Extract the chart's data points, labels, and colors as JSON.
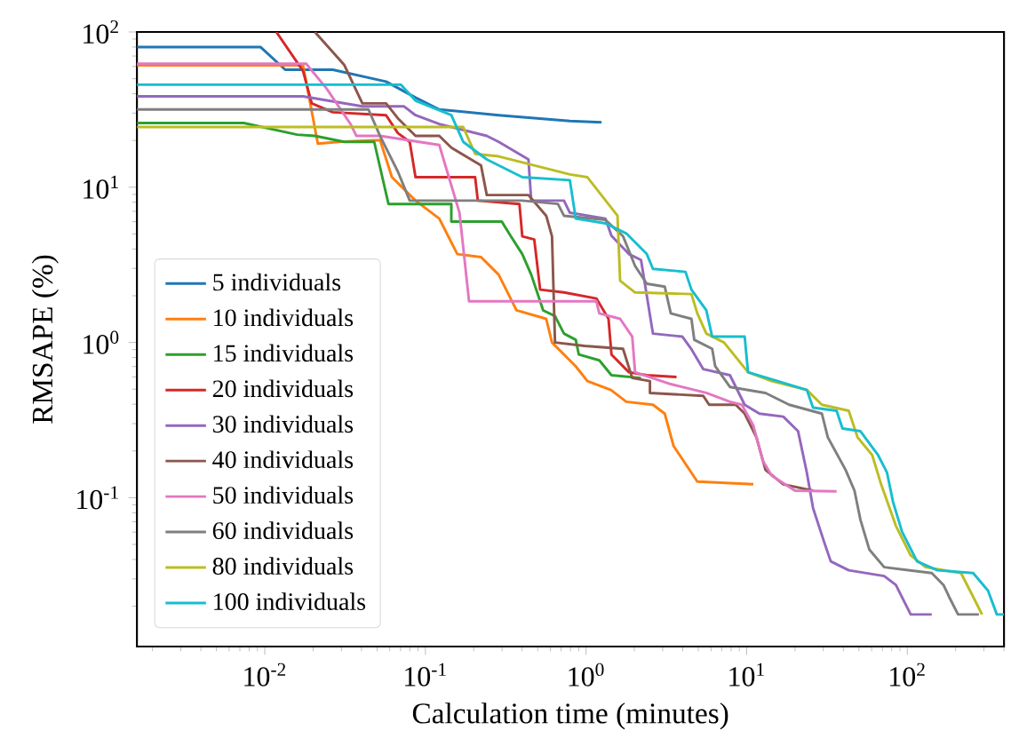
{
  "chart_data": {
    "type": "line",
    "xlabel": "Calculation time (minutes)",
    "ylabel": "RMSAPE (%)",
    "log": "xy",
    "legend": "bottom left",
    "xlim": [
      0.0016,
      400
    ],
    "ylim": [
      0.011,
      100
    ],
    "xticks": [
      {
        "value": 0.01,
        "label": "10$^{-2}$"
      },
      {
        "value": 0.1,
        "label": "10$^{-1}$"
      },
      {
        "value": 1,
        "label": "10$^{0}$"
      },
      {
        "value": 10,
        "label": "10$^{1}$"
      },
      {
        "value": 100,
        "label": "10$^{2}$"
      }
    ],
    "yticks": [
      {
        "value": 0.1,
        "label": "10$^{-1}$"
      },
      {
        "value": 1,
        "label": "10$^{0}$"
      },
      {
        "value": 10,
        "label": "10$^{1}$"
      },
      {
        "value": 100,
        "label": "10$^{2}$"
      }
    ],
    "series": [
      {
        "name": "5 individuals",
        "color": "#1f77b4",
        "x": [
          0.0016,
          0.0094,
          0.0134,
          0.0265,
          0.0569,
          0.0868,
          0.122,
          0.286,
          0.793,
          1.25
        ],
        "values": [
          80,
          80,
          57.1,
          57.1,
          47.9,
          37.8,
          31.7,
          29.1,
          26.7,
          26.2
        ]
      },
      {
        "name": "10 individuals",
        "color": "#ff7f0e",
        "x": [
          0.0016,
          0.0173,
          0.0214,
          0.0288,
          0.0522,
          0.0619,
          0.0868,
          0.122,
          0.158,
          0.222,
          0.286,
          0.369,
          0.565,
          0.614,
          0.863,
          1.02,
          1.43,
          1.78,
          2.61,
          3.09,
          3.51,
          4.93,
          11.0
        ],
        "values": [
          61,
          61,
          19.1,
          19.6,
          20.1,
          11.6,
          8.2,
          6.28,
          3.71,
          3.55,
          2.73,
          1.61,
          1.42,
          1.0,
          0.702,
          0.564,
          0.494,
          0.415,
          0.397,
          0.348,
          0.215,
          0.127,
          0.122
        ]
      },
      {
        "name": "15 individuals",
        "color": "#2ca02c",
        "x": [
          0.0016,
          0.0074,
          0.0159,
          0.0205,
          0.0313,
          0.048,
          0.0589,
          0.145,
          0.145,
          0.299,
          0.339,
          0.401,
          0.456,
          0.541,
          0.641,
          0.729,
          0.863,
          0.902,
          1.21,
          1.44,
          2.2
        ],
        "values": [
          25.9,
          25.9,
          21.8,
          21.4,
          19.6,
          19.6,
          7.8,
          7.8,
          6.0,
          6.0,
          4.86,
          3.71,
          2.73,
          1.61,
          1.48,
          1.14,
          1.04,
          0.836,
          0.767,
          0.615,
          0.59
        ]
      },
      {
        "name": "20 individuals",
        "color": "#d62728",
        "x": [
          0.0118,
          0.0173,
          0.0196,
          0.0265,
          0.0569,
          0.0674,
          0.0799,
          0.0868,
          0.204,
          0.212,
          0.385,
          0.401,
          0.476,
          0.518,
          0.729,
          1.16,
          1.38,
          1.44,
          1.85,
          2.39,
          3.66
        ],
        "values": [
          100,
          56.1,
          34.7,
          30.4,
          29.1,
          22.3,
          19.6,
          11.6,
          11.6,
          8.2,
          7.8,
          4.83,
          4.61,
          2.19,
          2.1,
          1.92,
          1.42,
          0.836,
          0.643,
          0.615,
          0.599
        ]
      },
      {
        "name": "30 individuals",
        "color": "#9467bd",
        "x": [
          0.0016,
          0.0173,
          0.0405,
          0.0734,
          0.0868,
          0.122,
          0.241,
          0.286,
          0.438,
          0.456,
          0.729,
          0.793,
          1.32,
          1.44,
          1.85,
          2.2,
          2.61,
          3.98,
          4.53,
          5.37,
          7.87,
          9.72,
          12.0,
          16.9,
          20.9,
          23.7,
          25.9,
          30.6,
          33.4,
          43.2,
          71.8,
          84.9,
          105,
          142
        ],
        "values": [
          38.5,
          38.5,
          33.2,
          33.2,
          29.1,
          25.5,
          21.4,
          19.6,
          15.1,
          8.2,
          8.2,
          6.85,
          6.28,
          4.86,
          3.71,
          3.4,
          1.14,
          1.09,
          0.905,
          0.673,
          0.615,
          0.397,
          0.348,
          0.333,
          0.268,
          0.145,
          0.0857,
          0.0506,
          0.0389,
          0.0341,
          0.0313,
          0.0274,
          0.0177,
          0.0177
        ]
      },
      {
        "name": "40 individuals",
        "color": "#8c564b",
        "x": [
          0.0205,
          0.0313,
          0.0405,
          0.0569,
          0.0674,
          0.0868,
          0.122,
          0.145,
          0.222,
          0.241,
          0.438,
          0.565,
          0.614,
          0.641,
          0.98,
          1.7,
          1.94,
          2.5,
          2.5,
          5.37,
          5.84,
          8.55,
          9.72,
          11.5,
          13.1,
          16.9,
          25.9
        ],
        "values": [
          100,
          61.2,
          34.7,
          34.7,
          27.8,
          21.4,
          21.4,
          18.0,
          13.8,
          8.9,
          8.9,
          6.55,
          4.83,
          1.0,
          0.95,
          0.91,
          0.59,
          0.564,
          0.473,
          0.453,
          0.397,
          0.397,
          0.348,
          0.245,
          0.151,
          0.122,
          0.111
        ]
      },
      {
        "name": "50 individuals",
        "color": "#e377c2",
        "x": [
          0.0016,
          0.0181,
          0.0243,
          0.0342,
          0.0372,
          0.0522,
          0.122,
          0.163,
          0.187,
          1.16,
          1.21,
          1.63,
          1.94,
          2.02,
          3.37,
          5.61,
          7.87,
          9.33,
          11.0,
          12.6,
          14.3,
          20.0,
          36.3
        ],
        "values": [
          62.4,
          62.4,
          43.1,
          25.5,
          21.4,
          21.4,
          18.7,
          6.85,
          1.84,
          1.84,
          1.54,
          1.42,
          1.09,
          0.643,
          0.539,
          0.473,
          0.415,
          0.397,
          0.292,
          0.173,
          0.139,
          0.111,
          0.11
        ]
      },
      {
        "name": "60 individuals",
        "color": "#7f7f7f",
        "x": [
          0.0016,
          0.0442,
          0.0522,
          0.0674,
          0.0799,
          0.401,
          0.668,
          0.729,
          1.32,
          1.7,
          2.02,
          2.39,
          3.09,
          3.37,
          4.53,
          4.72,
          6.1,
          6.37,
          7.87,
          13.1,
          18.4,
          29.4,
          32.0,
          41.3,
          46.9,
          51.1,
          58.0,
          71.8,
          142,
          168,
          182,
          207,
          279
        ],
        "values": [
          31.7,
          31.7,
          21.4,
          12.6,
          8.2,
          8.2,
          7.8,
          6.55,
          6.17,
          4.83,
          3.11,
          2.39,
          2.29,
          1.54,
          1.42,
          1.04,
          0.91,
          0.702,
          0.517,
          0.473,
          0.397,
          0.348,
          0.245,
          0.151,
          0.111,
          0.072,
          0.0464,
          0.0357,
          0.0327,
          0.0274,
          0.023,
          0.0177,
          0.0177
        ]
      },
      {
        "name": "80 individuals",
        "color": "#bcbd22",
        "x": [
          0.0016,
          0.172,
          0.204,
          0.286,
          0.793,
          1.02,
          1.57,
          1.63,
          2.02,
          4.53,
          4.93,
          5.61,
          7.23,
          10.2,
          14.3,
          23.7,
          29.4,
          43.2,
          49.0,
          60.5,
          68.7,
          84.9,
          105,
          130,
          216,
          257,
          292
        ],
        "values": [
          24.4,
          24.4,
          16.4,
          15.8,
          12.1,
          11.6,
          6.55,
          2.5,
          2.1,
          2.05,
          1.54,
          1.14,
          1.0,
          0.643,
          0.564,
          0.494,
          0.397,
          0.363,
          0.245,
          0.188,
          0.122,
          0.0659,
          0.0425,
          0.0357,
          0.0327,
          0.023,
          0.0177
        ]
      },
      {
        "name": "100 individuals",
        "color": "#17becf",
        "x": [
          0.0016,
          0.0703,
          0.0868,
          0.145,
          0.172,
          0.241,
          0.401,
          0.793,
          0.863,
          1.32,
          1.78,
          2.39,
          2.61,
          4.16,
          4.53,
          5.61,
          6.1,
          9.72,
          10.2,
          15.6,
          23.7,
          25.9,
          36.3,
          39.5,
          51.1,
          65.8,
          74.8,
          81.5,
          92.7,
          115,
          154,
          257,
          318,
          361,
          400
        ],
        "values": [
          45.8,
          45.8,
          36.1,
          29.1,
          19.6,
          15.1,
          11.6,
          11.1,
          6.28,
          5.85,
          5.04,
          3.71,
          2.98,
          2.85,
          2.19,
          1.61,
          1.09,
          1.09,
          0.643,
          0.564,
          0.494,
          0.38,
          0.363,
          0.279,
          0.268,
          0.188,
          0.145,
          0.094,
          0.0604,
          0.0389,
          0.0341,
          0.0327,
          0.0252,
          0.0177,
          0.0177
        ]
      }
    ]
  }
}
